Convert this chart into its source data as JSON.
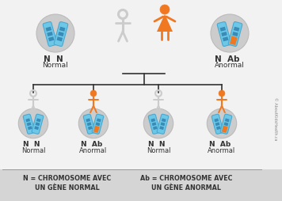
{
  "bg_color": "#f2f2f2",
  "footer_bg": "#d5d5d5",
  "orange": "#f07820",
  "blue_light": "#6dc8e8",
  "blue_mid": "#4aa8d0",
  "blue_dark": "#2878a8",
  "gray_circle": "#cccccc",
  "gray_circle_edge": "#bbbbbb",
  "black": "#333333",
  "gray_person": "#cccccc",
  "footer_left": "N = CHROMOSOME AVEC\nUN GÈNE NORMAL",
  "footer_right": "Ab = CHROMOSOME AVEC\nUN GÈNE ANORMAL",
  "watermark": "© AboutKidsHealth.ca",
  "parent_left_label1": "N  N",
  "parent_left_label2": "Normal",
  "parent_right_label1": "N  Ab",
  "parent_right_label2": "Anormal",
  "children": [
    {
      "label1": "N  N",
      "label2": "Normal",
      "orange": false,
      "has_ab": false
    },
    {
      "label1": "N  Ab",
      "label2": "Anormal",
      "orange": true,
      "has_ab": true
    },
    {
      "label1": "N  N",
      "label2": "Normal",
      "orange": false,
      "has_ab": false
    },
    {
      "label1": "N  Ab",
      "label2": "Anormal",
      "orange": true,
      "has_ab": true
    }
  ]
}
